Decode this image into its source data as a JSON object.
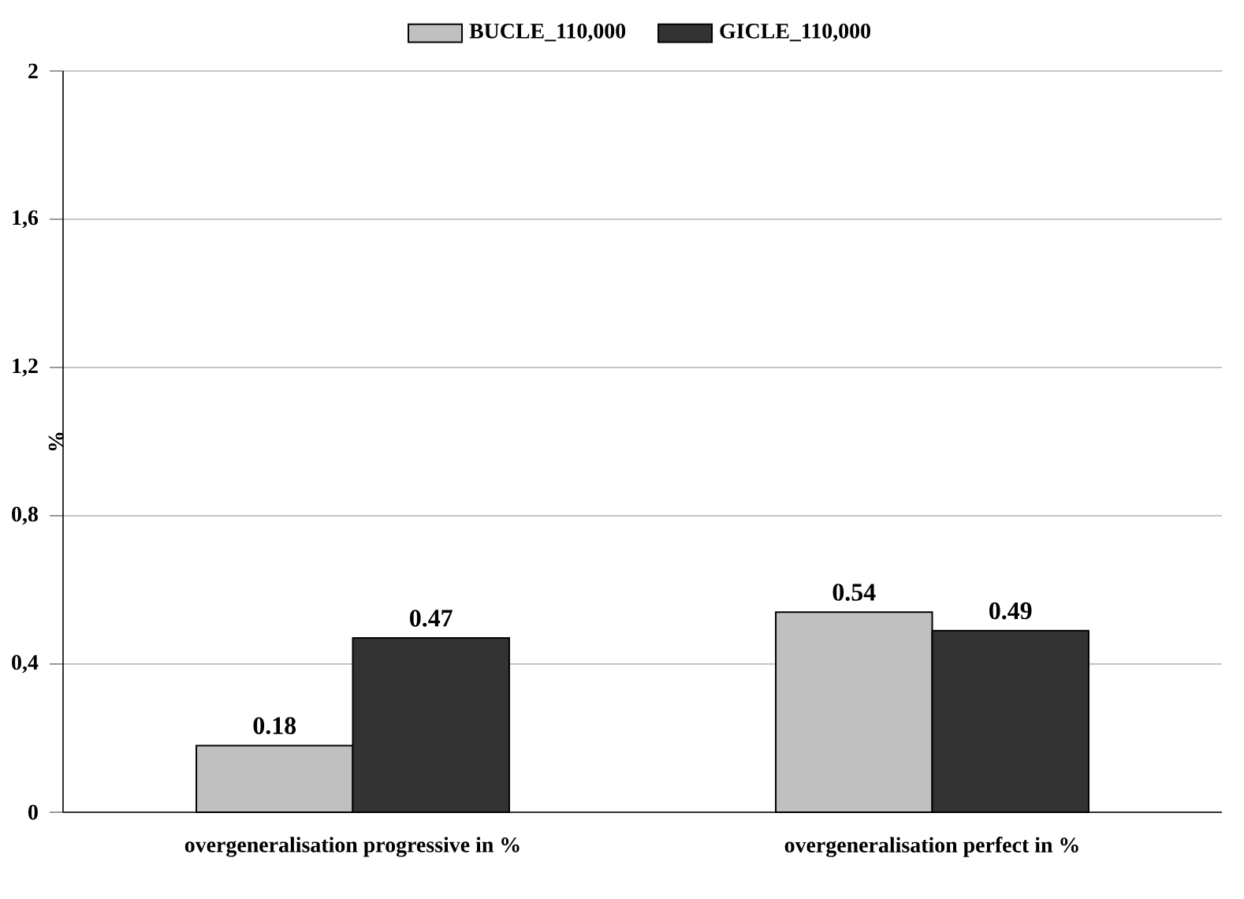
{
  "chart_data": {
    "type": "bar",
    "ylabel": "%",
    "categories": [
      "overgeneralisation progressive in %",
      "overgeneralisation perfect in %"
    ],
    "series": [
      {
        "name": "BUCLE_110,000",
        "color": "#c0c0c0",
        "values": [
          0.18,
          0.54
        ],
        "value_labels": [
          "0.18",
          "0.54"
        ]
      },
      {
        "name": "GICLE_110,000",
        "color": "#333333",
        "values": [
          0.47,
          0.49
        ],
        "value_labels": [
          "0.47",
          "0.49"
        ]
      }
    ],
    "ylim": [
      0,
      2
    ],
    "yticks": [
      0,
      {
        "value": 0.4,
        "label": "0,4"
      },
      {
        "value": 0.8,
        "label": "0,8"
      },
      {
        "value": 1.2,
        "label": "1,2"
      },
      {
        "value": 1.6,
        "label": "1,6"
      },
      2
    ],
    "grid": "y",
    "legend": "top"
  }
}
